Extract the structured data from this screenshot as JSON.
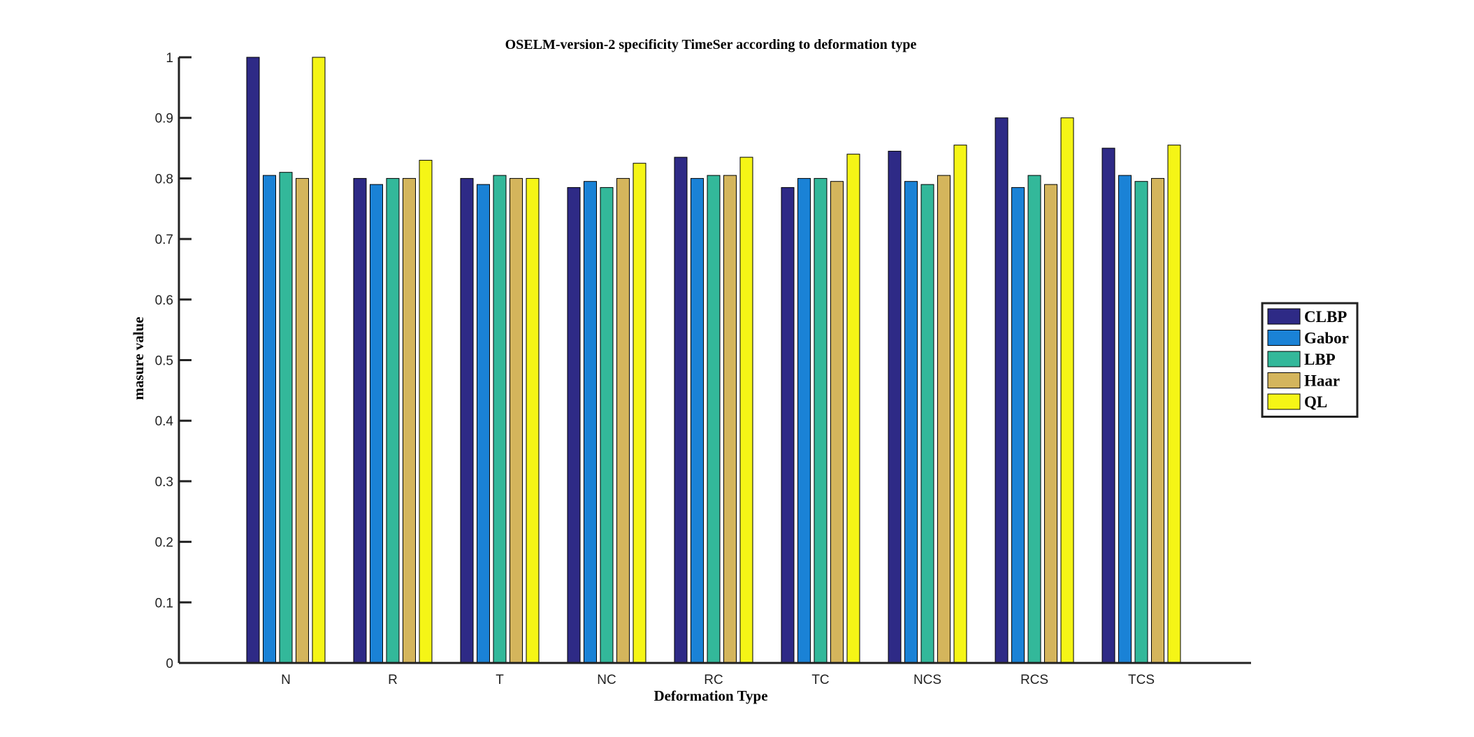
{
  "chart_data": {
    "type": "bar",
    "title": "OSELM-version-2 specificity TimeSer according to deformation type",
    "xlabel": "Deformation Type",
    "ylabel": "masure value",
    "ylim": [
      0,
      1
    ],
    "yticks": [
      "0",
      "0.1",
      "0.2",
      "0.3",
      "0.4",
      "0.5",
      "0.6",
      "0.7",
      "0.8",
      "0.9",
      "1"
    ],
    "categories": [
      "N",
      "R",
      "T",
      "NC",
      "RC",
      "TC",
      "NCS",
      "RCS",
      "TCS"
    ],
    "series": [
      {
        "name": "CLBP",
        "color": "#2e2a86",
        "values": [
          1.0,
          0.8,
          0.8,
          0.785,
          0.835,
          0.785,
          0.845,
          0.9,
          0.85
        ]
      },
      {
        "name": "Gabor",
        "color": "#1a82d6",
        "values": [
          0.805,
          0.79,
          0.79,
          0.795,
          0.8,
          0.8,
          0.795,
          0.785,
          0.805
        ]
      },
      {
        "name": "LBP",
        "color": "#33b89a",
        "values": [
          0.81,
          0.8,
          0.805,
          0.785,
          0.805,
          0.8,
          0.79,
          0.805,
          0.795
        ]
      },
      {
        "name": "Haar",
        "color": "#d4b55c",
        "values": [
          0.8,
          0.8,
          0.8,
          0.8,
          0.805,
          0.795,
          0.805,
          0.79,
          0.8
        ]
      },
      {
        "name": "QL",
        "color": "#f5f516",
        "values": [
          1.0,
          0.83,
          0.8,
          0.825,
          0.835,
          0.84,
          0.855,
          0.9,
          0.855
        ]
      }
    ],
    "grid": false,
    "legend_position": "right"
  }
}
